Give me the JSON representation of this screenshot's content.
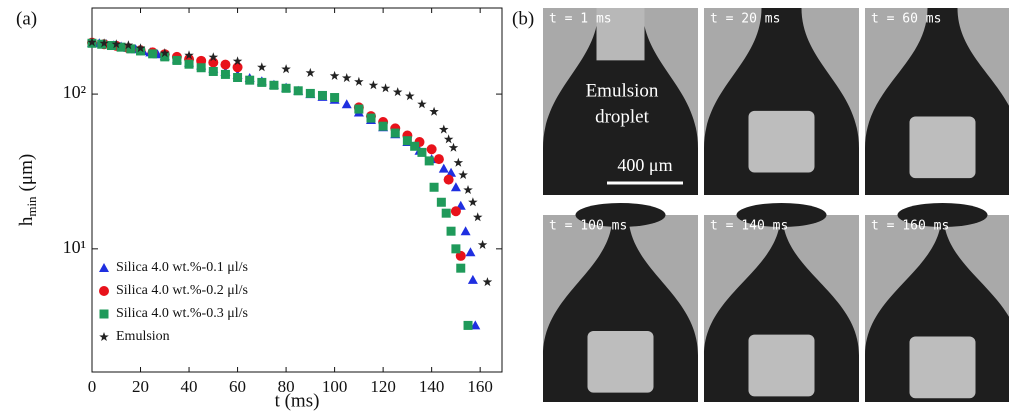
{
  "chart_data": {
    "type": "scatter",
    "panel_label": "(a)",
    "xlabel": "t (ms)",
    "ylabel": {
      "base": "h",
      "sub": "min",
      "unit": "(μm)"
    },
    "xlim": [
      0,
      169
    ],
    "ylim": [
      1.6,
      360
    ],
    "ylog": true,
    "xticks": [
      0,
      20,
      40,
      60,
      80,
      100,
      120,
      140,
      160
    ],
    "yticks": [
      {
        "value": 10,
        "label": "10¹"
      },
      {
        "value": 100,
        "label": "10²"
      }
    ],
    "legend": "lower left",
    "series": [
      {
        "name": "Silica  4.0 wt.%-0.1 μl/s",
        "color": "#1f2fe0",
        "marker": "triangle",
        "x": [
          0,
          3,
          6,
          9,
          12,
          15,
          18,
          21,
          24,
          27,
          30,
          35,
          40,
          45,
          50,
          55,
          60,
          65,
          70,
          75,
          80,
          85,
          90,
          95,
          100,
          105,
          110,
          115,
          120,
          125,
          130,
          135,
          140,
          145,
          148,
          150,
          152,
          154,
          156,
          157,
          158
        ],
        "values": [
          215,
          213,
          210,
          207,
          203,
          199,
          195,
          190,
          186,
          181,
          176,
          168,
          160,
          153,
          146,
          139,
          133,
          127,
          121,
          115,
          110,
          105,
          100,
          96,
          92,
          86,
          76,
          68,
          61,
          55,
          49,
          43,
          38,
          33,
          31,
          25,
          19,
          13,
          9.5,
          6.3,
          3.2
        ]
      },
      {
        "name": "Silica  4.0 wt.%-0.2 μl/s",
        "color": "#e8121b",
        "marker": "circle",
        "x": [
          0,
          5,
          10,
          15,
          20,
          25,
          30,
          35,
          40,
          45,
          50,
          55,
          60,
          110,
          115,
          120,
          125,
          130,
          135,
          140,
          143,
          147,
          150,
          152
        ],
        "values": [
          215,
          210,
          205,
          198,
          192,
          186,
          181,
          174,
          168,
          164,
          160,
          155,
          149,
          82,
          72,
          66,
          60,
          54,
          49,
          44,
          38,
          28,
          17.5,
          9
        ]
      },
      {
        "name": "Silica  4.0 wt.%-0.3 μl/s",
        "color": "#1f9a5a",
        "marker": "square",
        "x": [
          0,
          4,
          8,
          12,
          16,
          20,
          25,
          30,
          35,
          40,
          45,
          50,
          55,
          60,
          65,
          70,
          75,
          80,
          85,
          90,
          95,
          100,
          110,
          115,
          120,
          125,
          130,
          133,
          136,
          139,
          141,
          144,
          146,
          148,
          150,
          152,
          155
        ],
        "values": [
          213,
          210,
          206,
          201,
          196,
          190,
          182,
          174,
          165,
          156,
          148,
          140,
          134,
          128,
          123,
          119,
          114,
          109,
          105,
          101,
          98,
          95,
          80,
          70,
          62,
          56,
          50,
          46,
          42,
          37,
          25,
          20,
          17,
          13,
          10,
          7.5,
          3.2
        ]
      },
      {
        "name": "Emulsion",
        "color": "#222222",
        "marker": "star",
        "x": [
          0,
          5,
          10,
          15,
          20,
          30,
          40,
          50,
          60,
          70,
          80,
          90,
          100,
          105,
          110,
          116,
          121,
          126,
          131,
          136,
          141,
          145,
          147,
          149,
          151,
          153,
          155,
          157,
          159,
          161,
          163
        ],
        "values": [
          216,
          213,
          210,
          207,
          198,
          184,
          178,
          173,
          163,
          149,
          145,
          137,
          131,
          127,
          120,
          114,
          109,
          103,
          97,
          86,
          77,
          59,
          51,
          45,
          36,
          30,
          24,
          20,
          16,
          10.6,
          6.1
        ]
      }
    ]
  },
  "panel_b": {
    "label": "(b)",
    "frames": [
      "t = 1 ms",
      "t = 20 ms",
      "t = 60 ms",
      "t = 100 ms",
      "t = 140 ms",
      "t = 160 ms"
    ],
    "annotation": [
      "Emulsion",
      "droplet"
    ],
    "scale_bar": "400 μm"
  }
}
